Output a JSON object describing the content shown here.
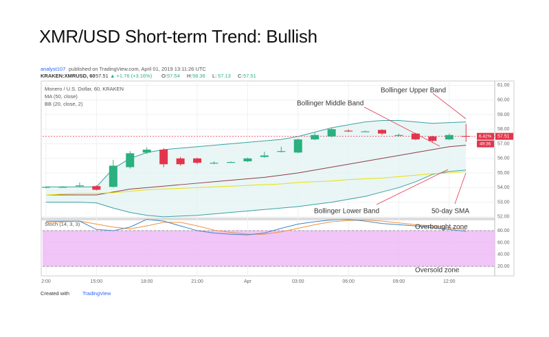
{
  "title": "XMR/USD Short-term Trend: Bullish",
  "publisher": {
    "author": "analyst107",
    "text": "published on TradingView.com, April 01, 2019 13:11:26 UTC"
  },
  "quote": {
    "symbol": "KRAKEN:XMRUSD, 60",
    "last": "57.51",
    "change": "▲ +1.76 (+3.16%)",
    "ohlc": [
      {
        "key": "O:",
        "value": "57.54"
      },
      {
        "key": "H:",
        "value": "58.36"
      },
      {
        "key": "L:",
        "value": "57.13"
      },
      {
        "key": "C:",
        "value": "57.51"
      }
    ]
  },
  "footer": {
    "text": "Created with",
    "brand": "TradingView"
  },
  "chart_data": {
    "type": "candlestick",
    "legend": [
      "Monero / U.S. Dollar, 60, KRAKEN",
      "MA (50, close)",
      "BB (20, close, 2)"
    ],
    "categories": [
      "2:00",
      null,
      null,
      "15:00",
      null,
      null,
      "18:00",
      null,
      null,
      "21:00",
      null,
      null,
      "Apr",
      null,
      null,
      "03:00",
      null,
      null,
      "06:00",
      null,
      null,
      "09:00",
      null,
      null,
      "12:00",
      null
    ],
    "open": [
      54.0,
      54.05,
      54.1,
      54.1,
      54.05,
      55.4,
      56.4,
      56.6,
      56.0,
      56.0,
      55.7,
      55.75,
      55.8,
      56.1,
      56.5,
      56.4,
      57.3,
      57.5,
      57.9,
      57.85,
      57.95,
      57.55,
      57.7,
      57.5,
      57.3,
      57.54
    ],
    "high": [
      54.1,
      54.1,
      54.35,
      54.15,
      55.9,
      56.5,
      56.75,
      56.7,
      56.1,
      56.05,
      55.8,
      55.8,
      56.05,
      56.45,
      56.8,
      57.35,
      57.75,
      58.1,
      58.0,
      57.9,
      58.0,
      57.7,
      57.75,
      57.55,
      57.7,
      58.36
    ],
    "low": [
      53.95,
      54.0,
      54.05,
      53.8,
      54.0,
      55.3,
      56.3,
      55.4,
      55.5,
      55.6,
      55.6,
      55.7,
      55.75,
      56.05,
      56.4,
      56.35,
      57.25,
      57.45,
      57.8,
      57.8,
      57.6,
      57.5,
      57.25,
      57.1,
      57.25,
      57.13
    ],
    "close": [
      54.05,
      54.05,
      54.15,
      53.85,
      55.5,
      56.35,
      56.6,
      55.6,
      55.6,
      55.7,
      55.7,
      55.75,
      56.0,
      56.2,
      56.5,
      57.3,
      57.6,
      58.0,
      57.85,
      57.85,
      57.7,
      57.6,
      57.3,
      57.2,
      57.6,
      57.51
    ],
    "up_color": "#2bb07f",
    "down_color": "#e2354c",
    "series": [
      {
        "name": "Bollinger Upper Band",
        "color": "#3aa0a0",
        "values": [
          54.05,
          54.05,
          54.05,
          54.05,
          55.3,
          56.0,
          56.4,
          56.6,
          56.7,
          56.8,
          56.9,
          57.0,
          57.1,
          57.2,
          57.3,
          57.5,
          57.8,
          58.1,
          58.3,
          58.5,
          58.6,
          58.6,
          58.5,
          58.4,
          58.45,
          58.5
        ]
      },
      {
        "name": "Bollinger Middle Band",
        "color": "#8e3b46",
        "values": [
          53.5,
          53.5,
          53.5,
          53.5,
          53.7,
          53.9,
          54.0,
          54.1,
          54.2,
          54.3,
          54.4,
          54.5,
          54.6,
          54.7,
          54.85,
          55.0,
          55.2,
          55.4,
          55.6,
          55.8,
          56.0,
          56.2,
          56.4,
          56.6,
          56.8,
          56.9
        ]
      },
      {
        "name": "Bollinger Lower Band",
        "color": "#3aa0a0",
        "values": [
          53.0,
          53.0,
          53.0,
          52.95,
          52.6,
          52.3,
          52.1,
          52.0,
          52.05,
          52.1,
          52.2,
          52.3,
          52.4,
          52.5,
          52.6,
          52.7,
          52.85,
          53.0,
          53.2,
          53.4,
          53.7,
          54.0,
          54.4,
          54.9,
          55.1,
          55.2
        ]
      },
      {
        "name": "50-day SMA",
        "color": "#e8e000",
        "values": [
          53.5,
          53.55,
          53.6,
          53.6,
          53.65,
          53.75,
          53.85,
          53.9,
          53.95,
          54.0,
          54.05,
          54.1,
          54.15,
          54.2,
          54.25,
          54.35,
          54.4,
          54.45,
          54.55,
          54.6,
          54.65,
          54.75,
          54.85,
          54.95,
          55.0,
          55.1
        ]
      }
    ],
    "band_fill": "#e4f4f2",
    "ylim": [
      51.9,
      61.3
    ],
    "yticks": [
      {
        "value": 52,
        "label": "52.00"
      },
      {
        "value": 53,
        "label": "53.00"
      },
      {
        "value": 54,
        "label": "54.00"
      },
      {
        "value": 55,
        "label": "55.00"
      },
      {
        "value": 56,
        "label": "56.00"
      },
      {
        "value": 57,
        "label": "57.00"
      },
      {
        "value": 58,
        "label": "58.00"
      },
      {
        "value": 59,
        "label": "59.00"
      },
      {
        "value": 60,
        "label": "60.00"
      },
      {
        "value": 61,
        "label": "61.00"
      }
    ],
    "price_tag": {
      "value": 57.51,
      "label": "57.51"
    },
    "change_tag": "6.42%",
    "countdown": "49:36",
    "grid": true,
    "stoch": {
      "label": "Stoch (14, 3, 3)",
      "k": {
        "color": "#3d85c6",
        "values": [
          96,
          96,
          96,
          82,
          80,
          86,
          99,
          96,
          88,
          80,
          76,
          74,
          73,
          76,
          84,
          91,
          95,
          98,
          99,
          96,
          92,
          90,
          88,
          85,
          82,
          79
        ]
      },
      "d": {
        "color": "#f0913a",
        "values": [
          94,
          95,
          96,
          91,
          86,
          83,
          88,
          94,
          94,
          88,
          81,
          77,
          74,
          74,
          78,
          84,
          90,
          95,
          97,
          98,
          96,
          93,
          90,
          88,
          85,
          82
        ]
      },
      "ylim": [
        4,
        98.5
      ],
      "yticks": [
        {
          "value": 20,
          "label": "20.00"
        },
        {
          "value": 40,
          "label": "40.00"
        },
        {
          "value": 60,
          "label": "60.00"
        },
        {
          "value": 80,
          "label": "80.00"
        }
      ],
      "zone": {
        "upper": 80,
        "lower": 20,
        "color": "#eebbf7",
        "upper_label": "Overbought zone",
        "lower_label": "Oversold zone"
      }
    }
  }
}
